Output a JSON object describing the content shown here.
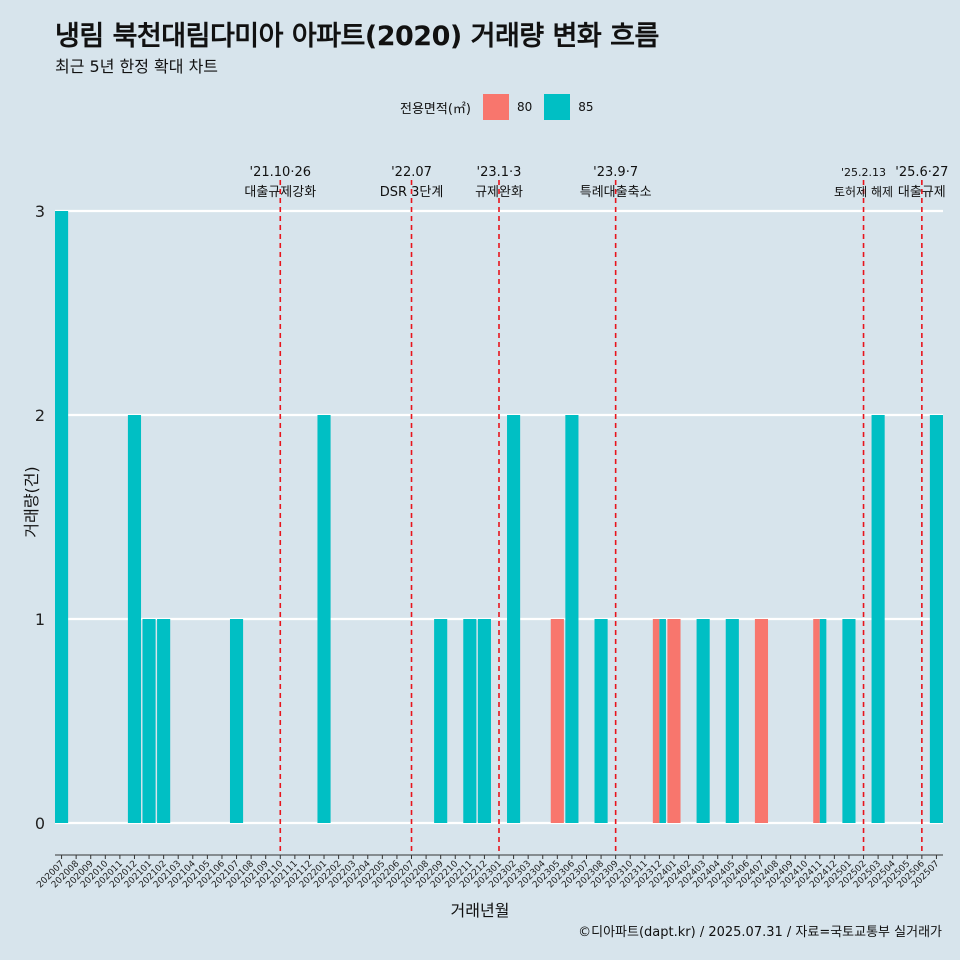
{
  "title": "냉림 북천대림다미아 아파트(2020) 거래량 변화 흐름",
  "subtitle": "최근 5년 한정 확대 차트",
  "caption": "©디아파트(dapt.kr) / 2025.07.31 / 자료=국토교통부 실거래가",
  "legend": {
    "title": "전용면적(㎡)",
    "items": [
      {
        "label": "80",
        "color": "#f8766d"
      },
      {
        "label": "85",
        "color": "#00bfc4"
      }
    ]
  },
  "chart_data": {
    "type": "bar",
    "xlabel": "거래년월",
    "ylabel": "거래량(건)",
    "ylim": [
      0,
      3
    ],
    "yticks": [
      0,
      1,
      2,
      3
    ],
    "grid": true,
    "legend_position": "top",
    "categories": [
      "202007",
      "202008",
      "202009",
      "202010",
      "202011",
      "202012",
      "202101",
      "202102",
      "202103",
      "202104",
      "202105",
      "202106",
      "202107",
      "202108",
      "202109",
      "202110",
      "202111",
      "202112",
      "202201",
      "202202",
      "202203",
      "202204",
      "202205",
      "202206",
      "202207",
      "202208",
      "202209",
      "202210",
      "202211",
      "202212",
      "202301",
      "202302",
      "202303",
      "202304",
      "202305",
      "202306",
      "202307",
      "202308",
      "202309",
      "202310",
      "202311",
      "202312",
      "202401",
      "202402",
      "202403",
      "202404",
      "202405",
      "202406",
      "202407",
      "202408",
      "202409",
      "202410",
      "202411",
      "202412",
      "202501",
      "202502",
      "202503",
      "202504",
      "202505",
      "202506",
      "202507"
    ],
    "series": [
      {
        "name": "80",
        "color": "#f8766d",
        "values": [
          0,
          0,
          0,
          0,
          0,
          0,
          0,
          0,
          0,
          0,
          0,
          0,
          0,
          0,
          0,
          0,
          0,
          0,
          0,
          0,
          0,
          0,
          0,
          0,
          0,
          0,
          0,
          0,
          0,
          0,
          0,
          0,
          0,
          0,
          1,
          0,
          0,
          0,
          0,
          0,
          0,
          1,
          1,
          0,
          0,
          0,
          0,
          0,
          1,
          0,
          0,
          0,
          1,
          0,
          0,
          0,
          0,
          0,
          0,
          0,
          0
        ]
      },
      {
        "name": "85",
        "color": "#00bfc4",
        "values": [
          3,
          0,
          0,
          0,
          0,
          2,
          1,
          1,
          0,
          0,
          0,
          0,
          1,
          0,
          0,
          0,
          0,
          0,
          2,
          0,
          0,
          0,
          0,
          0,
          0,
          0,
          1,
          0,
          1,
          1,
          0,
          2,
          0,
          0,
          0,
          2,
          0,
          1,
          0,
          0,
          0,
          1,
          0,
          0,
          1,
          0,
          1,
          0,
          0,
          0,
          0,
          0,
          1,
          0,
          1,
          0,
          2,
          0,
          0,
          0,
          2
        ]
      }
    ],
    "annotations": [
      {
        "category": "202110",
        "date": "'21.10·26",
        "text": "대출규제강화"
      },
      {
        "category": "202207",
        "date": "'22.07",
        "text": "DSR 3단계"
      },
      {
        "category": "202301",
        "date": "'23.1·3",
        "text": "규제완화"
      },
      {
        "category": "202309",
        "date": "'23.9·7",
        "text": "특례대출축소"
      },
      {
        "category": "202502",
        "date": "'25.2.13",
        "text": "토허제 해제"
      },
      {
        "category": "202506",
        "date": "'25.6·27",
        "text": "대출규제"
      }
    ]
  }
}
